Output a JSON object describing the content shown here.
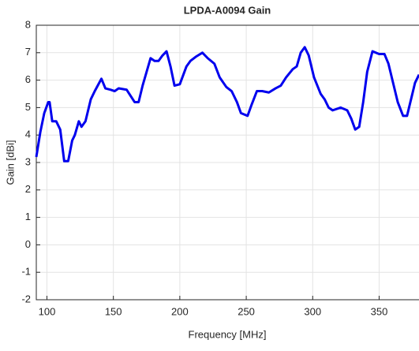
{
  "chart_data": {
    "type": "line",
    "title": "LPDA-A0094 Gain",
    "x_label": "Frequency [MHz]",
    "y_label": "Gain [dBi]",
    "x": [
      92,
      95,
      98,
      101,
      102,
      104,
      107,
      110,
      113,
      116,
      119,
      121,
      124,
      126,
      129,
      133,
      136,
      141,
      144,
      148,
      151,
      154,
      160,
      166,
      169,
      172,
      178,
      181,
      184,
      187,
      190,
      193,
      196,
      200,
      205,
      208,
      212,
      217,
      221,
      226,
      230,
      235,
      239,
      243,
      246,
      251,
      254,
      258,
      262,
      267,
      272,
      276,
      280,
      285,
      288,
      291,
      294,
      297,
      301,
      306,
      309,
      312,
      315,
      321,
      326,
      329,
      332,
      335,
      338,
      341,
      345,
      350,
      354,
      357,
      361,
      364,
      368,
      371,
      374,
      377,
      380
    ],
    "series": [
      {
        "name": "Gain",
        "color": "#0000ee",
        "values": [
          3.2,
          4.1,
          4.8,
          5.2,
          5.2,
          4.5,
          4.5,
          4.2,
          3.05,
          3.05,
          3.8,
          4.0,
          4.5,
          4.3,
          4.5,
          5.3,
          5.6,
          6.05,
          5.7,
          5.65,
          5.6,
          5.7,
          5.65,
          5.2,
          5.2,
          5.8,
          6.8,
          6.7,
          6.7,
          6.9,
          7.05,
          6.5,
          5.8,
          5.85,
          6.5,
          6.7,
          6.85,
          7.0,
          6.8,
          6.6,
          6.1,
          5.75,
          5.6,
          5.2,
          4.8,
          4.7,
          5.1,
          5.6,
          5.6,
          5.55,
          5.7,
          5.8,
          6.1,
          6.4,
          6.5,
          7.0,
          7.2,
          6.9,
          6.1,
          5.5,
          5.3,
          5.0,
          4.9,
          5.0,
          4.9,
          4.6,
          4.2,
          4.3,
          5.2,
          6.3,
          7.05,
          6.95,
          6.95,
          6.6,
          5.8,
          5.2,
          4.7,
          4.7,
          5.3,
          5.9,
          6.2
        ]
      }
    ],
    "xlim": [
      92,
      380
    ],
    "ylim": [
      -2,
      8
    ],
    "xticks": [
      100,
      150,
      200,
      250,
      300,
      350
    ],
    "yticks": [
      -2,
      -1,
      0,
      1,
      2,
      3,
      4,
      5,
      6,
      7,
      8
    ],
    "grid": true
  }
}
